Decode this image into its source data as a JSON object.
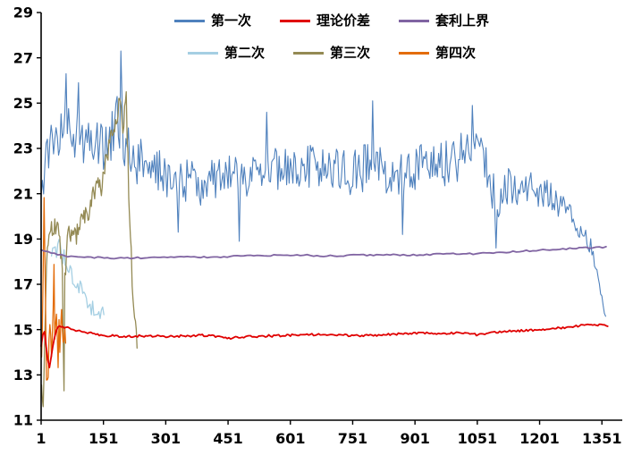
{
  "chart_data": {
    "type": "line",
    "title": "",
    "xlabel": "",
    "ylabel": "",
    "xlim": [
      1,
      1400
    ],
    "ylim": [
      11,
      29
    ],
    "x_ticks": [
      1,
      151,
      301,
      451,
      601,
      751,
      901,
      1051,
      1201,
      1351
    ],
    "y_ticks": [
      11,
      13,
      15,
      17,
      19,
      21,
      23,
      25,
      27,
      29
    ],
    "grid": false,
    "legend_position": "top-center",
    "background": "#FFFFFF",
    "axis_color": "#000000",
    "noise_seed": 7,
    "draw_order": [
      0,
      3,
      4,
      5,
      1,
      2
    ],
    "series": [
      {
        "name": "第一次",
        "color": "#4F81BD",
        "width": 1.1,
        "step": 3,
        "amp_anchors": [
          [
            1,
            0.9
          ],
          [
            30,
            1.1
          ],
          [
            60,
            1.3
          ],
          [
            100,
            1.2
          ],
          [
            140,
            1.1
          ],
          [
            170,
            1.4
          ],
          [
            193,
            1.6
          ],
          [
            210,
            1.2
          ],
          [
            250,
            1.0
          ],
          [
            300,
            0.95
          ],
          [
            400,
            0.95
          ],
          [
            500,
            1.0
          ],
          [
            600,
            1.05
          ],
          [
            700,
            1.0
          ],
          [
            800,
            1.1
          ],
          [
            900,
            1.0
          ],
          [
            1000,
            1.05
          ],
          [
            1050,
            0.9
          ],
          [
            1095,
            1.0
          ],
          [
            1150,
            0.8
          ],
          [
            1250,
            0.6
          ],
          [
            1300,
            0.45
          ],
          [
            1330,
            0.4
          ],
          [
            1360,
            0.15
          ]
        ],
        "anchors": [
          [
            1,
            20.5
          ],
          [
            8,
            22.0
          ],
          [
            20,
            23.0
          ],
          [
            40,
            23.4
          ],
          [
            60,
            23.7
          ],
          [
            80,
            23.5
          ],
          [
            100,
            23.6
          ],
          [
            120,
            22.9
          ],
          [
            140,
            23.2
          ],
          [
            160,
            23.0
          ],
          [
            175,
            23.4
          ],
          [
            193,
            24.2
          ],
          [
            205,
            23.0
          ],
          [
            220,
            22.6
          ],
          [
            240,
            22.4
          ],
          [
            270,
            22.1
          ],
          [
            300,
            21.8
          ],
          [
            330,
            21.4
          ],
          [
            360,
            21.6
          ],
          [
            390,
            21.4
          ],
          [
            420,
            21.7
          ],
          [
            450,
            21.9
          ],
          [
            480,
            21.5
          ],
          [
            510,
            22.0
          ],
          [
            540,
            22.4
          ],
          [
            570,
            22.1
          ],
          [
            600,
            21.9
          ],
          [
            630,
            22.2
          ],
          [
            660,
            22.3
          ],
          [
            690,
            22.1
          ],
          [
            720,
            22.0
          ],
          [
            750,
            21.9
          ],
          [
            780,
            22.2
          ],
          [
            800,
            22.5
          ],
          [
            820,
            22.0
          ],
          [
            850,
            21.7
          ],
          [
            880,
            21.9
          ],
          [
            910,
            22.1
          ],
          [
            940,
            22.5
          ],
          [
            970,
            22.3
          ],
          [
            1000,
            22.5
          ],
          [
            1030,
            22.9
          ],
          [
            1055,
            23.1
          ],
          [
            1075,
            22.2
          ],
          [
            1095,
            20.6
          ],
          [
            1110,
            21.2
          ],
          [
            1130,
            21.5
          ],
          [
            1150,
            21.2
          ],
          [
            1170,
            21.4
          ],
          [
            1190,
            21.1
          ],
          [
            1210,
            21.0
          ],
          [
            1230,
            20.9
          ],
          [
            1250,
            20.5
          ],
          [
            1270,
            20.1
          ],
          [
            1290,
            19.6
          ],
          [
            1310,
            19.1
          ],
          [
            1325,
            18.6
          ],
          [
            1335,
            17.9
          ],
          [
            1345,
            17.0
          ],
          [
            1352,
            16.2
          ],
          [
            1360,
            15.6
          ]
        ],
        "spikes": [
          [
            62,
            26.3
          ],
          [
            90,
            25.9
          ],
          [
            193,
            27.3
          ],
          [
            330,
            19.3
          ],
          [
            478,
            18.9
          ],
          [
            545,
            24.6
          ],
          [
            800,
            25.1
          ],
          [
            872,
            19.2
          ],
          [
            1040,
            24.9
          ],
          [
            1095,
            18.6
          ]
        ]
      },
      {
        "name": "理论价差",
        "color": "#E00000",
        "width": 1.8,
        "step": 4,
        "amp": 0.05,
        "anchors": [
          [
            1,
            14.3
          ],
          [
            8,
            15.1
          ],
          [
            15,
            14.0
          ],
          [
            20,
            13.2
          ],
          [
            28,
            14.2
          ],
          [
            40,
            15.15
          ],
          [
            60,
            15.1
          ],
          [
            80,
            15.0
          ],
          [
            100,
            14.9
          ],
          [
            150,
            14.75
          ],
          [
            200,
            14.7
          ],
          [
            250,
            14.72
          ],
          [
            300,
            14.7
          ],
          [
            350,
            14.72
          ],
          [
            400,
            14.75
          ],
          [
            450,
            14.62
          ],
          [
            500,
            14.7
          ],
          [
            550,
            14.72
          ],
          [
            600,
            14.75
          ],
          [
            650,
            14.78
          ],
          [
            700,
            14.8
          ],
          [
            750,
            14.72
          ],
          [
            800,
            14.75
          ],
          [
            850,
            14.8
          ],
          [
            900,
            14.85
          ],
          [
            950,
            14.82
          ],
          [
            1000,
            14.85
          ],
          [
            1050,
            14.78
          ],
          [
            1100,
            14.9
          ],
          [
            1150,
            14.95
          ],
          [
            1200,
            15.0
          ],
          [
            1250,
            15.08
          ],
          [
            1300,
            15.18
          ],
          [
            1330,
            15.25
          ],
          [
            1365,
            15.15
          ]
        ],
        "spikes": []
      },
      {
        "name": "套利上界",
        "color": "#8064A2",
        "width": 1.8,
        "step": 8,
        "amp": 0.035,
        "anchors": [
          [
            1,
            18.55
          ],
          [
            30,
            18.35
          ],
          [
            60,
            18.25
          ],
          [
            100,
            18.2
          ],
          [
            200,
            18.15
          ],
          [
            300,
            18.2
          ],
          [
            400,
            18.2
          ],
          [
            500,
            18.25
          ],
          [
            600,
            18.3
          ],
          [
            700,
            18.25
          ],
          [
            800,
            18.3
          ],
          [
            900,
            18.3
          ],
          [
            1000,
            18.35
          ],
          [
            1050,
            18.35
          ],
          [
            1100,
            18.4
          ],
          [
            1150,
            18.45
          ],
          [
            1200,
            18.5
          ],
          [
            1250,
            18.55
          ],
          [
            1300,
            18.6
          ],
          [
            1365,
            18.65
          ]
        ],
        "spikes": []
      },
      {
        "name": "第二次",
        "color": "#A5CFE3",
        "width": 1.3,
        "step": 3,
        "amp": 0.35,
        "anchors": [
          [
            26,
            18.5
          ],
          [
            32,
            18.9
          ],
          [
            38,
            18.3
          ],
          [
            44,
            19.3
          ],
          [
            50,
            18.1
          ],
          [
            56,
            18.4
          ],
          [
            62,
            17.5
          ],
          [
            70,
            17.9
          ],
          [
            78,
            17.1
          ],
          [
            86,
            16.7
          ],
          [
            94,
            17.0
          ],
          [
            102,
            16.4
          ],
          [
            110,
            16.2
          ],
          [
            120,
            16.0
          ],
          [
            130,
            15.9
          ],
          [
            140,
            15.8
          ],
          [
            152,
            15.7
          ]
        ],
        "spikes": []
      },
      {
        "name": "第三次",
        "color": "#948A54",
        "width": 1.3,
        "step": 2,
        "amp": 0.5,
        "anchors": [
          [
            2,
            12.5
          ],
          [
            5,
            11.7
          ],
          [
            10,
            14.5
          ],
          [
            16,
            18.8
          ],
          [
            22,
            19.5
          ],
          [
            30,
            19.2
          ],
          [
            38,
            19.6
          ],
          [
            45,
            19.0
          ],
          [
            52,
            17.5
          ],
          [
            55,
            13.5
          ],
          [
            58,
            17.0
          ],
          [
            65,
            19.0
          ],
          [
            75,
            19.4
          ],
          [
            85,
            19.1
          ],
          [
            95,
            19.6
          ],
          [
            105,
            19.9
          ],
          [
            115,
            20.3
          ],
          [
            125,
            20.8
          ],
          [
            135,
            21.4
          ],
          [
            145,
            21.0
          ],
          [
            155,
            22.2
          ],
          [
            165,
            23.2
          ],
          [
            175,
            23.8
          ],
          [
            185,
            24.6
          ],
          [
            192,
            25.0
          ],
          [
            198,
            23.8
          ],
          [
            205,
            25.2
          ],
          [
            210,
            22.5
          ],
          [
            215,
            19.5
          ],
          [
            222,
            16.5
          ],
          [
            228,
            15.0
          ],
          [
            232,
            14.5
          ]
        ],
        "spikes": [
          [
            5,
            11.6
          ],
          [
            55,
            12.3
          ],
          [
            205,
            25.5
          ]
        ]
      },
      {
        "name": "第四次",
        "color": "#E36C0A",
        "width": 1.3,
        "step": 2,
        "amp": 0.7,
        "anchors": [
          [
            2,
            13.5
          ],
          [
            5,
            16.0
          ],
          [
            8,
            20.3
          ],
          [
            11,
            17.5
          ],
          [
            14,
            13.2
          ],
          [
            17,
            12.3
          ],
          [
            20,
            14.5
          ],
          [
            23,
            16.4
          ],
          [
            26,
            13.6
          ],
          [
            29,
            15.5
          ],
          [
            32,
            17.2
          ],
          [
            35,
            14.2
          ],
          [
            38,
            16.0
          ],
          [
            41,
            13.2
          ],
          [
            44,
            15.3
          ],
          [
            47,
            14.2
          ],
          [
            50,
            15.2
          ],
          [
            53,
            14.3
          ],
          [
            56,
            15.0
          ],
          [
            60,
            14.4
          ]
        ],
        "spikes": []
      }
    ]
  }
}
